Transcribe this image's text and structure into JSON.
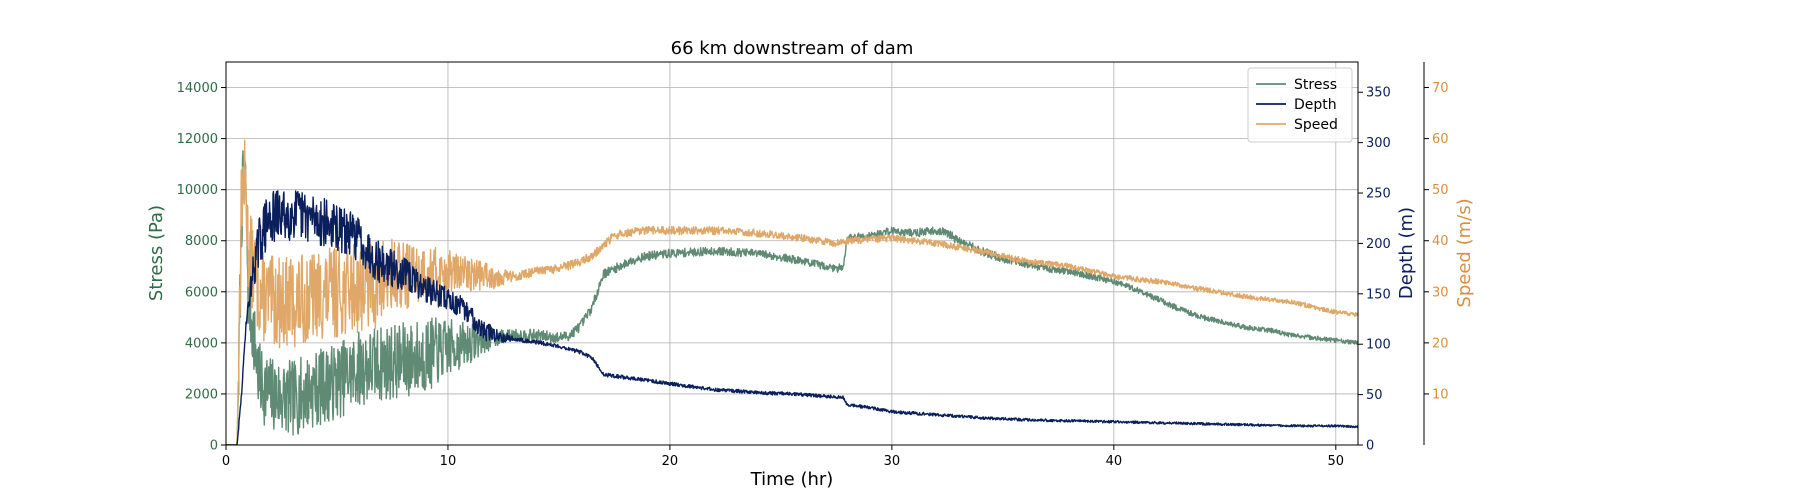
{
  "chart_data": {
    "type": "line",
    "title": "66 km downstream of dam",
    "xlabel": "Time (hr)",
    "xlim": [
      0,
      51
    ],
    "xticks": [
      0,
      10,
      20,
      30,
      40,
      50
    ],
    "grid": true,
    "legend_position": "top-right",
    "axes": {
      "stress": {
        "label": "Stress (Pa)",
        "ylim": [
          0,
          15000
        ],
        "ticks": [
          0,
          2000,
          4000,
          6000,
          8000,
          10000,
          12000,
          14000
        ],
        "color": "#2e6b46"
      },
      "depth": {
        "label": "Depth (m)",
        "ylim": [
          0,
          380
        ],
        "ticks": [
          0,
          50,
          100,
          150,
          200,
          250,
          300,
          350
        ],
        "color": "#0a1f5c"
      },
      "speed": {
        "label": "Speed (m/s)",
        "ylim": [
          0,
          75
        ],
        "ticks": [
          10,
          20,
          30,
          40,
          50,
          60,
          70
        ],
        "color": "#d98f3c"
      }
    },
    "series": [
      {
        "name": "Stress",
        "axis": "stress",
        "color": "#5f8a74",
        "x": [
          0,
          0.5,
          0.6,
          0.7,
          0.8,
          0.9,
          1.0,
          1.5,
          2,
          3,
          4,
          5,
          6,
          7,
          8,
          9,
          10,
          11,
          12,
          13,
          14,
          15,
          15.5,
          16,
          16.5,
          17,
          17.5,
          18,
          18.5,
          19,
          20,
          22,
          24,
          26,
          27.5,
          27.8,
          28,
          29,
          29.5,
          30,
          31,
          32,
          32.5,
          33,
          34,
          35,
          36,
          37,
          38,
          39,
          40,
          41,
          42,
          43,
          44,
          45,
          46,
          47,
          48,
          49,
          50,
          51
        ],
        "values": [
          0,
          0,
          4000,
          9000,
          10700,
          10000,
          6000,
          2500,
          2000,
          1800,
          2200,
          2500,
          3000,
          3200,
          3300,
          3500,
          3800,
          4000,
          4200,
          4300,
          4300,
          4200,
          4300,
          4700,
          5400,
          6700,
          6900,
          7100,
          7300,
          7400,
          7500,
          7600,
          7500,
          7200,
          6900,
          7000,
          8100,
          8200,
          8300,
          8400,
          8300,
          8400,
          8300,
          8000,
          7600,
          7300,
          7100,
          6900,
          6800,
          6600,
          6400,
          6100,
          5700,
          5300,
          5000,
          4800,
          4600,
          4500,
          4300,
          4200,
          4100,
          4000
        ],
        "noise": [
          [
            0.9,
            1500
          ],
          [
            9.0,
            1500
          ],
          [
            12.5,
            250
          ],
          [
            17,
            180
          ],
          [
            27.5,
            150
          ],
          [
            33.5,
            170
          ],
          [
            40,
            120
          ],
          [
            51,
            80
          ]
        ]
      },
      {
        "name": "Depth",
        "axis": "depth",
        "color": "#0a1f5c",
        "x": [
          0,
          0.5,
          0.7,
          0.9,
          1.2,
          1.6,
          2,
          3,
          4,
          5,
          6,
          6.5,
          7,
          8,
          9,
          10,
          11,
          11.5,
          12,
          13,
          14,
          15,
          16,
          16.5,
          17,
          18,
          19,
          20,
          22,
          24,
          26,
          27.8,
          28,
          29,
          30,
          32,
          34,
          36,
          38,
          40,
          42,
          44,
          46,
          48,
          50,
          51
        ],
        "values": [
          0,
          0,
          50,
          120,
          170,
          210,
          225,
          230,
          225,
          215,
          205,
          190,
          180,
          170,
          155,
          145,
          130,
          115,
          110,
          105,
          102,
          98,
          92,
          86,
          70,
          67,
          64,
          61,
          55,
          52,
          50,
          47,
          40,
          37,
          33,
          30,
          27,
          25,
          24,
          23,
          22,
          21,
          20,
          19,
          19,
          18
        ],
        "noise": [
          [
            0.9,
            3
          ],
          [
            1.5,
            28
          ],
          [
            6.5,
            22
          ],
          [
            9,
            14
          ],
          [
            12,
            9
          ],
          [
            13,
            2
          ],
          [
            51,
            1
          ]
        ]
      },
      {
        "name": "Speed",
        "axis": "speed",
        "color": "#e0a868",
        "x": [
          0,
          0.5,
          0.6,
          0.7,
          0.8,
          0.9,
          1.0,
          1.5,
          2,
          3,
          4,
          5,
          6,
          7,
          8,
          9,
          10,
          11,
          12,
          13,
          14,
          15,
          16,
          16.5,
          17,
          17.5,
          18,
          19,
          20,
          22,
          24,
          26,
          27.5,
          28,
          30,
          32,
          34,
          36,
          38,
          40,
          42,
          44,
          46,
          48,
          50,
          51
        ],
        "values": [
          0,
          0,
          25,
          49,
          52,
          50,
          38,
          30,
          28,
          28,
          29,
          30,
          31,
          32,
          33,
          34,
          34,
          33.5,
          33,
          33,
          34,
          34.5,
          36,
          37,
          39,
          41,
          41.5,
          42,
          42,
          42,
          41.5,
          40.5,
          39.5,
          40,
          40.5,
          39.5,
          38,
          36,
          35,
          33,
          32,
          30.5,
          29,
          28,
          26,
          25.5
        ],
        "noise": [
          [
            0.9,
            9
          ],
          [
            7,
            9
          ],
          [
            9,
            5
          ],
          [
            12,
            2.5
          ],
          [
            13,
            0.9
          ],
          [
            51,
            0.4
          ]
        ]
      }
    ]
  }
}
